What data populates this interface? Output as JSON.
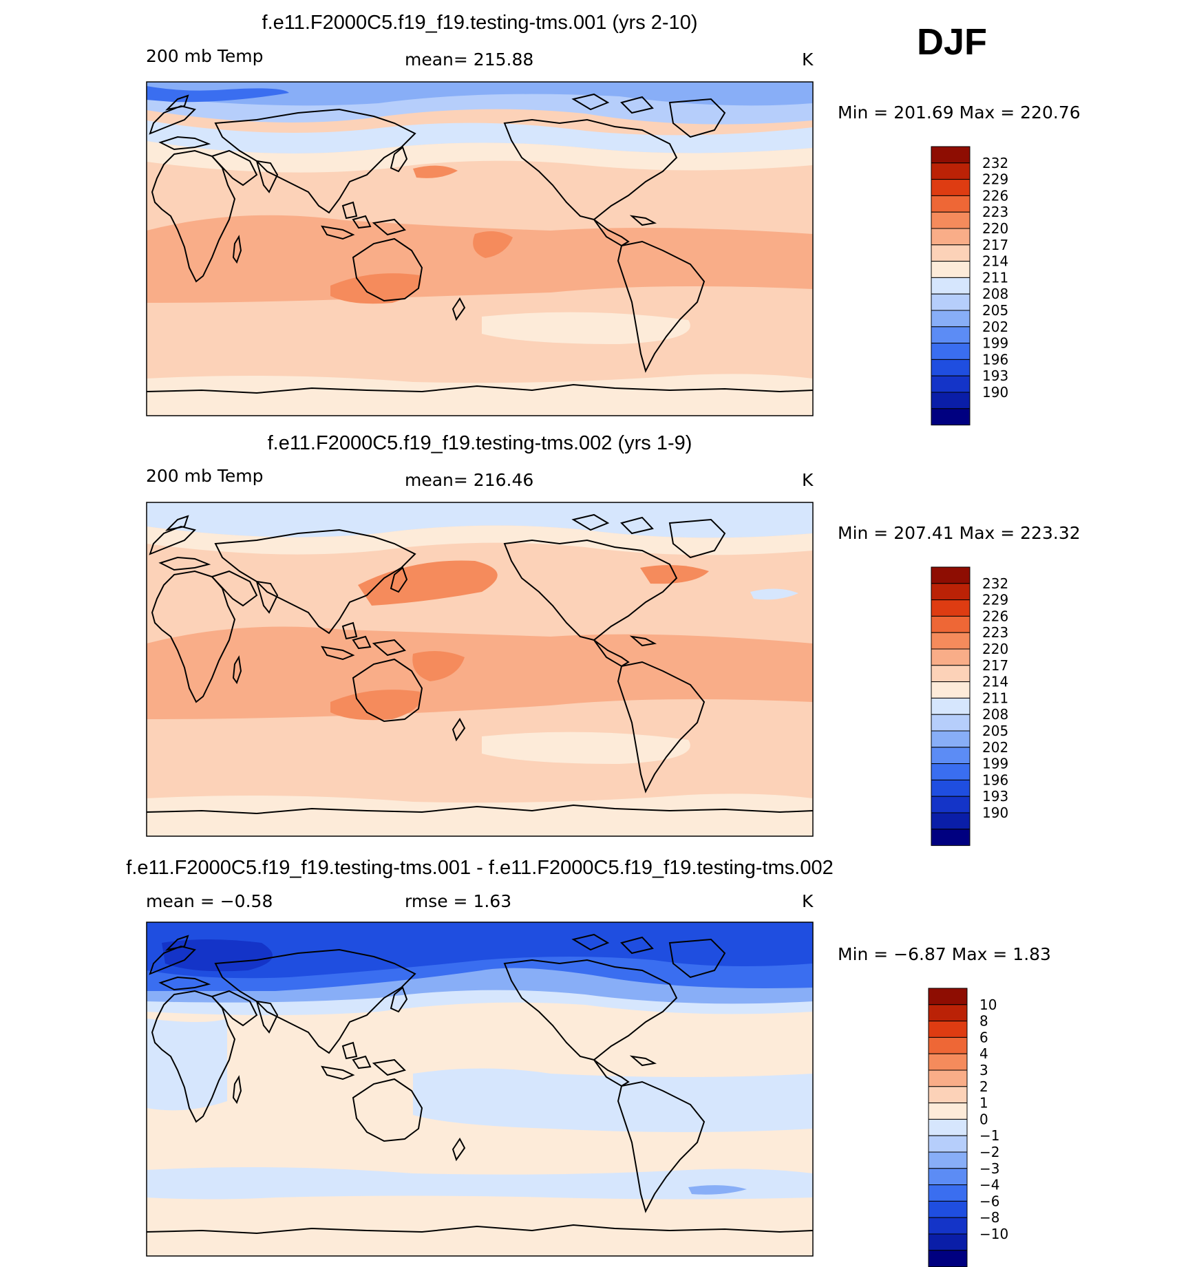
{
  "season": "DJF",
  "colors": {
    "temp_scale": [
      "#000080",
      "#0a1ea8",
      "#1434c8",
      "#1f4ee0",
      "#3a6ef0",
      "#5c8cf5",
      "#88aef7",
      "#b6cefb",
      "#d6e6fd",
      "#fdebd9",
      "#fcd2b8",
      "#f9ad88",
      "#f58b5c",
      "#ee6736",
      "#de3c12",
      "#bb2206",
      "#8e0d02"
    ],
    "diff_scale": [
      "#000080",
      "#0a1ea8",
      "#1434c8",
      "#1f4ee0",
      "#3a6ef0",
      "#5c8cf5",
      "#88aef7",
      "#b6cefb",
      "#d6e6fd",
      "#fdebd9",
      "#fcd2b8",
      "#f9ad88",
      "#f58b5c",
      "#ee6736",
      "#de3c12",
      "#bb2206",
      "#8e0d02"
    ]
  },
  "chart_data": [
    {
      "type": "heatmap",
      "title": "f.e11.F2000C5.f19_f19.testing-tms.001 (yrs 2-10)",
      "left_label": "200 mb Temp",
      "center_label": "mean=  215.88",
      "units": "K",
      "stats": "Min  =  201.69  Max  =  220.76",
      "mean": 215.88,
      "min": 201.69,
      "max": 220.76,
      "colorbar_levels": [
        "232",
        "229",
        "226",
        "223",
        "220",
        "217",
        "214",
        "211",
        "208",
        "205",
        "202",
        "199",
        "196",
        "193",
        "190"
      ]
    },
    {
      "type": "heatmap",
      "title": "f.e11.F2000C5.f19_f19.testing-tms.002 (yrs 1-9)",
      "left_label": "200 mb Temp",
      "center_label": "mean=  216.46",
      "units": "K",
      "stats": "Min  =  207.41  Max  =  223.32",
      "mean": 216.46,
      "min": 207.41,
      "max": 223.32,
      "colorbar_levels": [
        "232",
        "229",
        "226",
        "223",
        "220",
        "217",
        "214",
        "211",
        "208",
        "205",
        "202",
        "199",
        "196",
        "193",
        "190"
      ]
    },
    {
      "type": "heatmap",
      "title": "f.e11.F2000C5.f19_f19.testing-tms.001 - f.e11.F2000C5.f19_f19.testing-tms.002",
      "left_label": "mean  =    −0.58",
      "center_label": "rmse  =     1.63",
      "units": "K",
      "stats": "Min  =    −6.87  Max  =      1.83",
      "mean": -0.58,
      "rmse": 1.63,
      "min": -6.87,
      "max": 1.83,
      "colorbar_levels": [
        "10",
        "8",
        "6",
        "4",
        "3",
        "2",
        "1",
        "0",
        "−1",
        "−2",
        "−3",
        "−4",
        "−6",
        "−8",
        "−10"
      ]
    }
  ]
}
